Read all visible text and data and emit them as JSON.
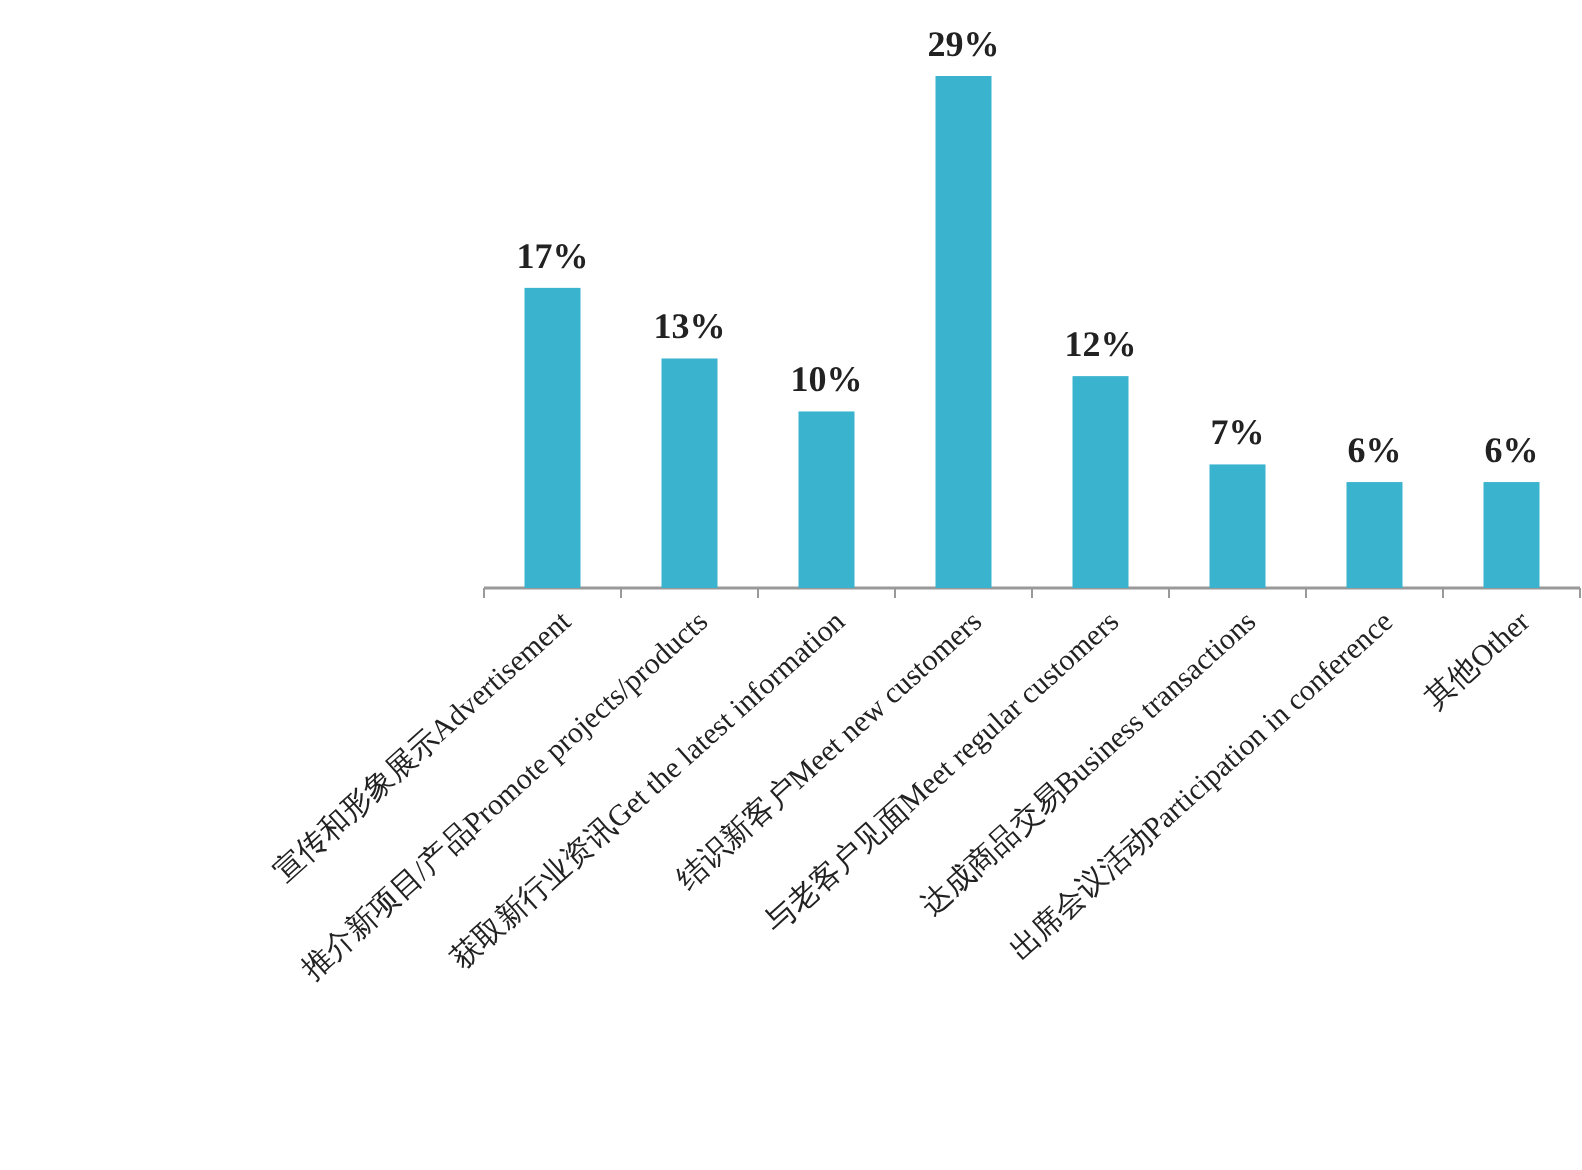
{
  "chart_data": {
    "type": "bar",
    "categories": [
      "宣传和形象展示Advertisement",
      "推介新项目/产品Promote projects/products",
      "获取新行业资讯Get the latest information",
      "结识新客户Meet new customers",
      "与老客户见面Meet regular customers",
      "达成商品交易Business transactions",
      "出席会议活动Participation in conference",
      "其他Other"
    ],
    "values": [
      17,
      13,
      10,
      29,
      12,
      7,
      6,
      6
    ],
    "value_labels": [
      "17%",
      "13%",
      "10%",
      "29%",
      "12%",
      "7%",
      "6%",
      "6%"
    ],
    "color": "#3ab3cf"
  }
}
